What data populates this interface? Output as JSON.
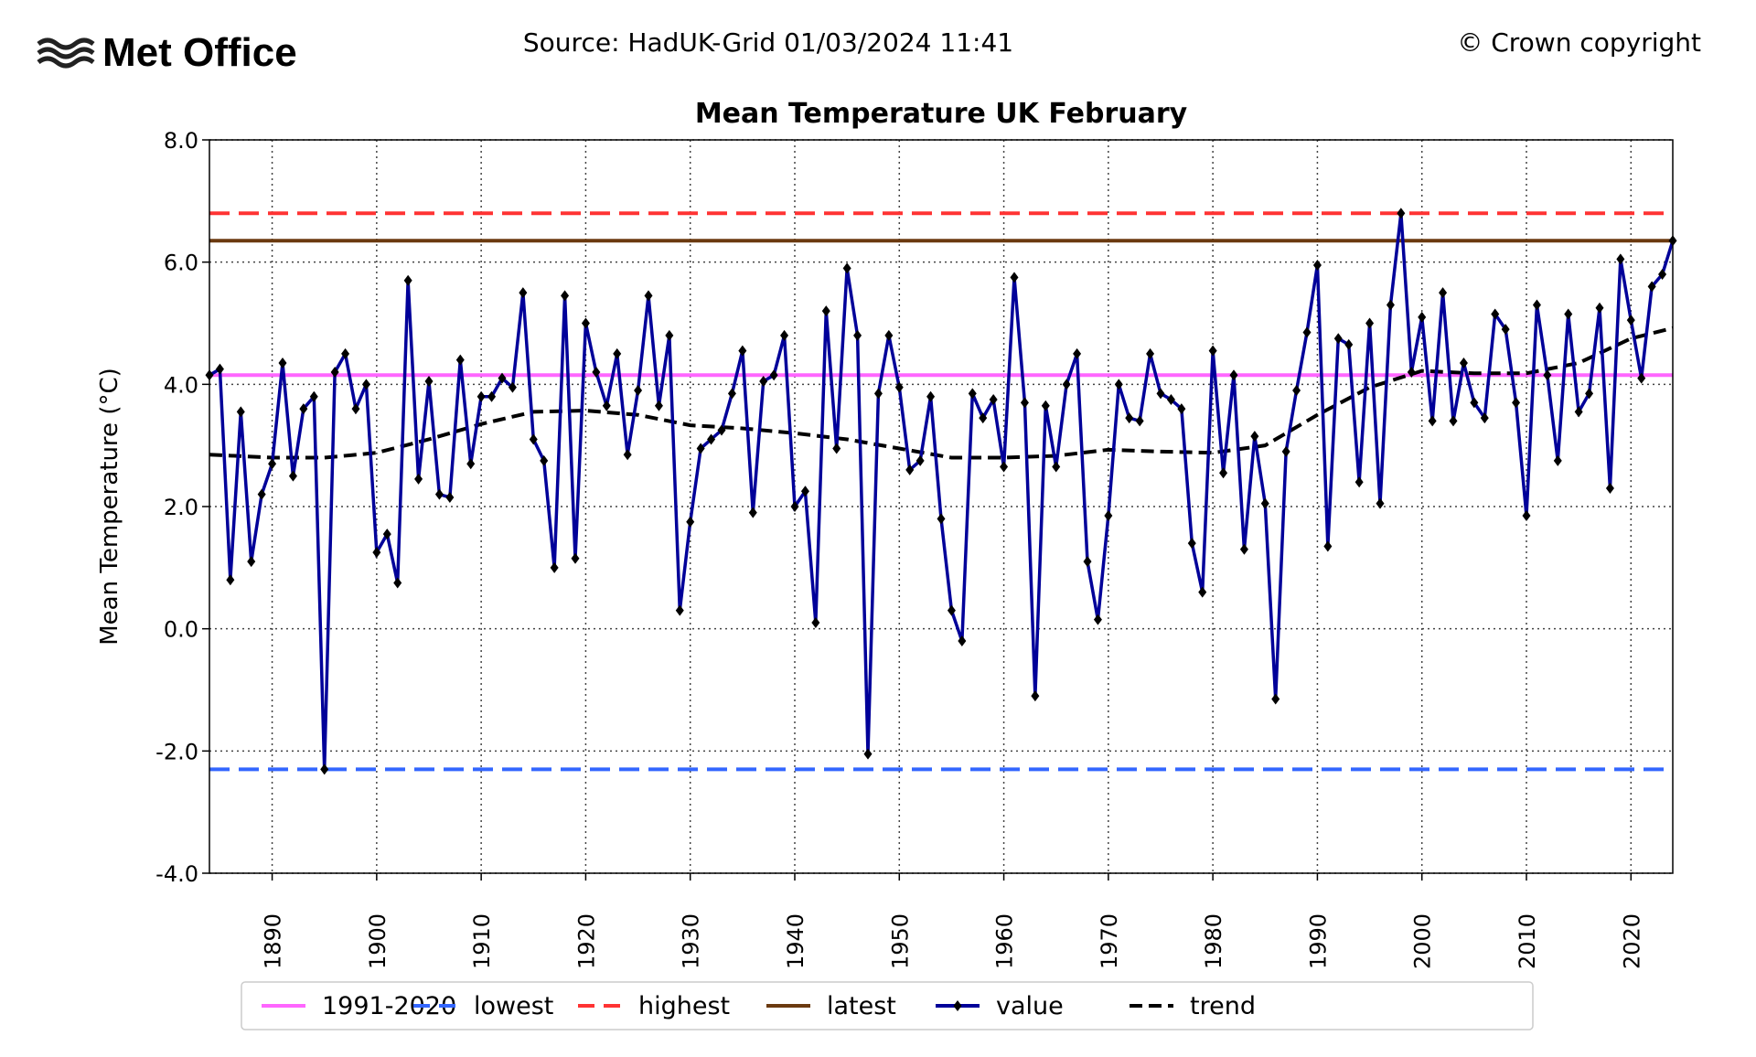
{
  "header": {
    "logo_text": "Met Office",
    "source": "Source: HadUK-Grid 01/03/2024 11:41",
    "copyright": "© Crown copyright"
  },
  "chart_data": {
    "type": "line",
    "title": "Mean Temperature UK February",
    "xlabel": "",
    "ylabel": "Mean Temperature (°C)",
    "xlim": [
      1884,
      2024
    ],
    "ylim": [
      -4.0,
      8.0
    ],
    "grid": true,
    "legend_placement": "bottom",
    "x_ticks": [
      "1890",
      "1900",
      "1910",
      "1920",
      "1930",
      "1940",
      "1950",
      "1960",
      "1970",
      "1980",
      "1990",
      "2000",
      "2010",
      "2020"
    ],
    "y_ticks": [
      "8.0",
      "6.0",
      "4.0",
      "2.0",
      "0.0",
      "-2.0",
      "-4.0"
    ],
    "reference_lines": [
      {
        "name": "1991-2020",
        "value": 4.15,
        "color": "#ff66ff",
        "style": "solid"
      },
      {
        "name": "lowest",
        "value": -2.3,
        "color": "#3366ff",
        "style": "dashed"
      },
      {
        "name": "highest",
        "value": 6.8,
        "color": "#ff3333",
        "style": "dashed"
      },
      {
        "name": "latest",
        "value": 6.35,
        "color": "#6b3a10",
        "style": "solid"
      }
    ],
    "series": [
      {
        "name": "value",
        "color": "#000099",
        "marker": "diamond",
        "x_start": 1884,
        "values": [
          4.15,
          4.25,
          0.8,
          3.55,
          1.1,
          2.2,
          2.7,
          4.35,
          2.5,
          3.6,
          3.8,
          -2.3,
          4.2,
          4.5,
          3.6,
          4.0,
          1.25,
          1.55,
          0.75,
          5.7,
          2.45,
          4.05,
          2.2,
          2.15,
          4.4,
          2.7,
          3.8,
          3.8,
          4.1,
          3.95,
          5.5,
          3.1,
          2.75,
          1.0,
          5.45,
          1.15,
          5.0,
          4.2,
          3.65,
          4.5,
          2.85,
          3.9,
          5.45,
          3.65,
          4.8,
          0.3,
          1.75,
          2.95,
          3.1,
          3.25,
          3.85,
          4.55,
          1.9,
          4.05,
          4.15,
          4.8,
          2.0,
          2.25,
          0.1,
          5.2,
          2.95,
          5.9,
          4.8,
          -2.05,
          3.85,
          4.8,
          3.95,
          2.6,
          2.75,
          3.8,
          1.8,
          0.3,
          -0.2,
          3.85,
          3.45,
          3.75,
          2.65,
          5.75,
          3.7,
          -1.1,
          3.65,
          2.65,
          4.0,
          4.5,
          1.1,
          0.15,
          1.85,
          4.0,
          3.45,
          3.4,
          4.5,
          3.85,
          3.75,
          3.6,
          1.4,
          0.6,
          4.55,
          2.55,
          4.15,
          1.3,
          3.15,
          2.05,
          -1.15,
          2.9,
          3.9,
          4.85,
          5.95,
          1.35,
          4.75,
          4.65,
          2.4,
          5.0,
          2.05,
          5.3,
          6.8,
          4.2,
          5.1,
          3.4,
          5.5,
          3.4,
          4.35,
          3.7,
          3.45,
          5.15,
          4.9,
          3.7,
          1.85,
          5.3,
          4.15,
          2.75,
          5.15,
          3.55,
          3.85,
          5.25,
          2.3,
          6.05,
          5.05,
          4.1,
          5.6,
          5.8,
          6.35
        ]
      },
      {
        "name": "trend",
        "color": "#000000",
        "style": "dashed",
        "x": [
          1884,
          1890,
          1895,
          1900,
          1905,
          1910,
          1915,
          1920,
          1925,
          1930,
          1935,
          1940,
          1945,
          1950,
          1955,
          1960,
          1965,
          1970,
          1975,
          1980,
          1985,
          1990,
          1995,
          2000,
          2005,
          2010,
          2015,
          2020,
          2024
        ],
        "values": [
          2.85,
          2.8,
          2.8,
          2.88,
          3.1,
          3.35,
          3.55,
          3.57,
          3.5,
          3.33,
          3.28,
          3.2,
          3.1,
          2.95,
          2.8,
          2.8,
          2.83,
          2.93,
          2.9,
          2.88,
          3.0,
          3.5,
          3.95,
          4.22,
          4.18,
          4.18,
          4.35,
          4.75,
          4.92
        ]
      }
    ],
    "legend": [
      "1991-2020",
      "lowest",
      "highest",
      "latest",
      "value",
      "trend"
    ]
  }
}
